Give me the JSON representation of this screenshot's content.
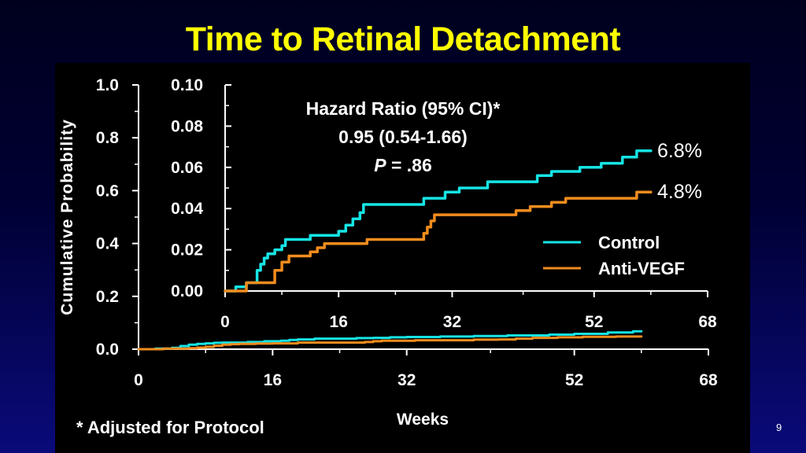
{
  "slide": {
    "title": "Time to Retinal Detachment",
    "footnote": "* Adjusted for Protocol",
    "page_number": "9"
  },
  "chart_data": [
    {
      "type": "line",
      "subtype": "step",
      "role": "main",
      "xlabel": "Weeks",
      "ylabel": "Cumulative Probability",
      "xlim": [
        0,
        68
      ],
      "ylim": [
        0,
        1.0
      ],
      "xticks": [
        0,
        16,
        32,
        52,
        68
      ],
      "yticks": [
        "0.0",
        "0.2",
        "0.4",
        "0.6",
        "0.8",
        "1.0"
      ],
      "series": [
        {
          "name": "Control",
          "color": "#16e4e4",
          "points": [
            [
              0,
              0
            ],
            [
              2,
              0.002
            ],
            [
              4,
              0.005
            ],
            [
              5,
              0.012
            ],
            [
              6,
              0.017
            ],
            [
              7,
              0.02
            ],
            [
              8,
              0.022
            ],
            [
              9,
              0.024
            ],
            [
              10,
              0.025
            ],
            [
              13,
              0.027
            ],
            [
              15,
              0.03
            ],
            [
              17,
              0.032
            ],
            [
              18,
              0.035
            ],
            [
              19,
              0.037
            ],
            [
              21,
              0.04
            ],
            [
              26,
              0.042
            ],
            [
              28,
              0.043
            ],
            [
              30,
              0.045
            ],
            [
              32,
              0.046
            ],
            [
              36,
              0.048
            ],
            [
              40,
              0.05
            ],
            [
              44,
              0.052
            ],
            [
              49,
              0.055
            ],
            [
              52,
              0.058
            ],
            [
              56,
              0.063
            ],
            [
              59,
              0.068
            ],
            [
              60,
              0.068
            ]
          ]
        },
        {
          "name": "Anti-VEGF",
          "color": "#f08c1e",
          "points": [
            [
              0,
              0
            ],
            [
              3,
              0.002
            ],
            [
              6,
              0.004
            ],
            [
              7,
              0.006
            ],
            [
              8,
              0.009
            ],
            [
              9,
              0.013
            ],
            [
              10,
              0.017
            ],
            [
              11,
              0.019
            ],
            [
              12,
              0.02
            ],
            [
              14,
              0.021
            ],
            [
              16,
              0.022
            ],
            [
              19,
              0.025
            ],
            [
              27,
              0.027
            ],
            [
              28,
              0.03
            ],
            [
              29,
              0.032
            ],
            [
              33,
              0.034
            ],
            [
              40,
              0.036
            ],
            [
              43,
              0.037
            ],
            [
              45,
              0.04
            ],
            [
              47,
              0.043
            ],
            [
              50,
              0.045
            ],
            [
              53,
              0.047
            ],
            [
              57,
              0.048
            ],
            [
              60,
              0.048
            ]
          ]
        }
      ]
    },
    {
      "type": "line",
      "subtype": "step",
      "role": "inset",
      "xlim": [
        0,
        68
      ],
      "ylim": [
        0,
        0.1
      ],
      "xticks": [
        0,
        16,
        32,
        52,
        68
      ],
      "yticks": [
        "0.00",
        "0.02",
        "0.04",
        "0.06",
        "0.08",
        "0.10"
      ],
      "annotation": {
        "line1": "Hazard Ratio (95% CI)*",
        "line2": "0.95 (0.54-1.66)",
        "p_symbol": "P",
        "p_value": " = .86"
      },
      "end_labels": [
        {
          "text": "6.8%",
          "series": "Control",
          "y": 0.068
        },
        {
          "text": "4.8%",
          "series": "Anti-VEGF",
          "y": 0.048
        }
      ],
      "legend": {
        "placement": "bottom-right",
        "entries": [
          {
            "label": "Control",
            "color": "#16e4e4"
          },
          {
            "label": "Anti-VEGF",
            "color": "#f08c1e"
          }
        ]
      },
      "series": [
        {
          "name": "Control",
          "color": "#16e4e4",
          "points": [
            [
              0,
              0
            ],
            [
              1.5,
              0.002
            ],
            [
              3,
              0.004
            ],
            [
              4.5,
              0.01
            ],
            [
              5,
              0.013
            ],
            [
              5.5,
              0.016
            ],
            [
              6,
              0.018
            ],
            [
              7,
              0.02
            ],
            [
              8,
              0.022
            ],
            [
              8.5,
              0.025
            ],
            [
              12,
              0.027
            ],
            [
              16,
              0.029
            ],
            [
              17,
              0.032
            ],
            [
              18,
              0.035
            ],
            [
              19,
              0.038
            ],
            [
              19.5,
              0.042
            ],
            [
              28,
              0.045
            ],
            [
              31,
              0.048
            ],
            [
              33,
              0.05
            ],
            [
              37,
              0.053
            ],
            [
              44,
              0.056
            ],
            [
              46,
              0.058
            ],
            [
              50,
              0.06
            ],
            [
              53,
              0.062
            ],
            [
              56,
              0.065
            ],
            [
              58,
              0.068
            ],
            [
              60,
              0.068
            ]
          ]
        },
        {
          "name": "Anti-VEGF",
          "color": "#f08c1e",
          "points": [
            [
              0,
              0
            ],
            [
              3,
              0.004
            ],
            [
              7,
              0.01
            ],
            [
              8,
              0.014
            ],
            [
              9,
              0.017
            ],
            [
              12,
              0.019
            ],
            [
              13,
              0.021
            ],
            [
              14,
              0.023
            ],
            [
              20,
              0.025
            ],
            [
              28,
              0.028
            ],
            [
              28.5,
              0.031
            ],
            [
              29,
              0.034
            ],
            [
              29.5,
              0.037
            ],
            [
              41,
              0.039
            ],
            [
              43,
              0.041
            ],
            [
              46,
              0.043
            ],
            [
              48,
              0.045
            ],
            [
              58,
              0.048
            ],
            [
              60,
              0.048
            ]
          ]
        }
      ]
    }
  ]
}
